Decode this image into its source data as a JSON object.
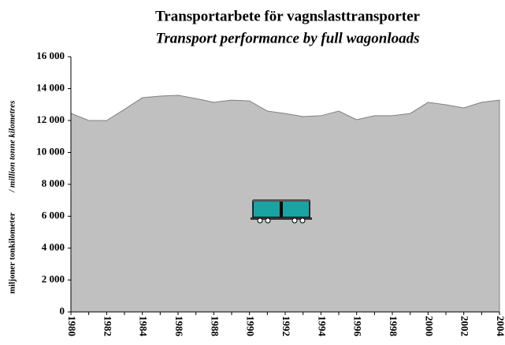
{
  "chart_data": {
    "type": "area",
    "title": "Transportarbete för vagnslasttransporter",
    "subtitle": "Transport performance by full wagonloads",
    "y_label": "miljoner tonkilometer",
    "y_label_en": "/ million tonne kilometres",
    "categories": [
      "1980",
      null,
      "1982",
      null,
      "1984",
      null,
      "1986",
      null,
      "1988",
      null,
      "1990",
      null,
      "1992",
      null,
      "1994",
      null,
      "1996",
      null,
      "1998",
      null,
      "2000",
      null,
      "2002",
      null,
      "2004"
    ],
    "values": [
      12450,
      12000,
      12000,
      12700,
      13430,
      13530,
      13580,
      13380,
      13140,
      13280,
      13230,
      12590,
      12440,
      12250,
      12300,
      12590,
      12050,
      12300,
      12300,
      12440,
      13140,
      12990,
      12790,
      13140,
      13280
    ],
    "color": "#c0c0c0",
    "ylim": [
      0,
      16000
    ],
    "yticks": [
      0,
      {
        "value": 2000,
        "label": "2 000"
      },
      {
        "value": 4000,
        "label": "4 000"
      },
      {
        "value": 6000,
        "label": "6 000"
      },
      {
        "value": 8000,
        "label": "8 000"
      },
      {
        "value": 10000,
        "label": "10 000"
      },
      {
        "value": 12000,
        "label": "12 000"
      },
      {
        "value": 14000,
        "label": "14 000"
      },
      {
        "value": 16000,
        "label": "16 000"
      }
    ]
  }
}
